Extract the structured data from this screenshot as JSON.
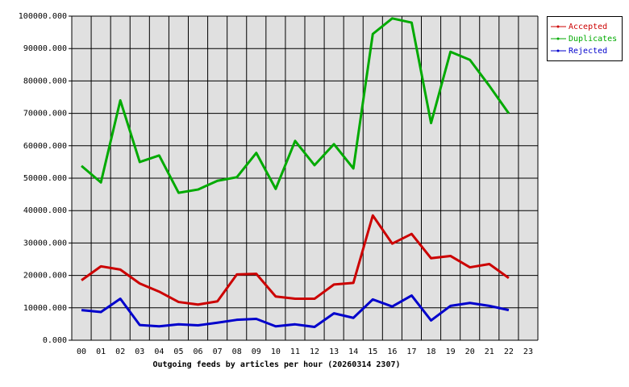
{
  "chart_data": {
    "type": "line",
    "xlabel": "Outgoing feeds by articles per hour (20260314 2307)",
    "categories": [
      "00",
      "01",
      "02",
      "03",
      "04",
      "05",
      "06",
      "07",
      "08",
      "09",
      "10",
      "11",
      "12",
      "13",
      "14",
      "15",
      "16",
      "17",
      "18",
      "19",
      "20",
      "21",
      "22",
      "23"
    ],
    "series": [
      {
        "name": "Accepted",
        "color": "#cc0000",
        "values": [
          18500,
          22800,
          21800,
          17500,
          15000,
          11800,
          11000,
          12000,
          20300,
          20500,
          13500,
          12800,
          12800,
          17200,
          17700,
          38500,
          29800,
          32800,
          25300,
          26000,
          22500,
          23500,
          19200,
          null
        ]
      },
      {
        "name": "Duplicates",
        "color": "#00aa00",
        "values": [
          53800,
          48700,
          74000,
          55000,
          57000,
          45500,
          46500,
          49200,
          50300,
          57800,
          46700,
          61500,
          54000,
          60500,
          53000,
          94500,
          99300,
          98000,
          67000,
          89000,
          86500,
          78500,
          70000,
          null
        ]
      },
      {
        "name": "Rejected",
        "color": "#0000cc",
        "values": [
          9300,
          8700,
          12800,
          4700,
          4300,
          4900,
          4600,
          5400,
          6300,
          6600,
          4300,
          4900,
          4100,
          8300,
          6900,
          12600,
          10400,
          13800,
          6100,
          10600,
          11500,
          10600,
          9300,
          null
        ]
      }
    ],
    "ylim": [
      0,
      100000
    ],
    "yticks": [
      {
        "value": 0,
        "label": "0.000"
      },
      {
        "value": 10000,
        "label": "10000.000"
      },
      {
        "value": 20000,
        "label": "20000.000"
      },
      {
        "value": 30000,
        "label": "30000.000"
      },
      {
        "value": 40000,
        "label": "40000.000"
      },
      {
        "value": 50000,
        "label": "50000.000"
      },
      {
        "value": 60000,
        "label": "60000.000"
      },
      {
        "value": 70000,
        "label": "70000.000"
      },
      {
        "value": 80000,
        "label": "80000.000"
      },
      {
        "value": 90000,
        "label": "90000.000"
      },
      {
        "value": 100000,
        "label": "100000.000"
      }
    ],
    "grid": true,
    "legend": "top-right"
  }
}
